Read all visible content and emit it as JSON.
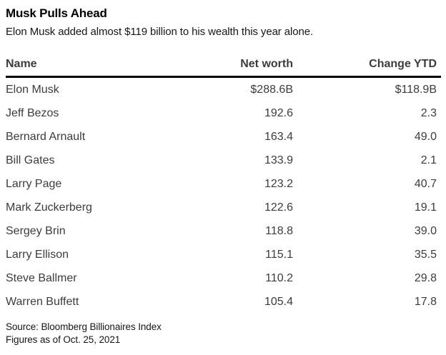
{
  "title": "Musk Pulls Ahead",
  "subtitle": "Elon Musk added almost $119 billion to his wealth this year alone.",
  "colors": {
    "title_text": "#000000",
    "table_text": "#3c3c3c",
    "header_rule": "#000000",
    "background": "#ffffff"
  },
  "table": {
    "columns": [
      "Name",
      "Net worth",
      "Change YTD"
    ],
    "rows": [
      {
        "name": "Elon Musk",
        "net_worth": "$288.6B",
        "change_ytd": "$118.9B"
      },
      {
        "name": "Jeff Bezos",
        "net_worth": "192.6",
        "change_ytd": "2.3"
      },
      {
        "name": "Bernard Arnault",
        "net_worth": "163.4",
        "change_ytd": "49.0"
      },
      {
        "name": "Bill Gates",
        "net_worth": "133.9",
        "change_ytd": "2.1"
      },
      {
        "name": "Larry Page",
        "net_worth": "123.2",
        "change_ytd": "40.7"
      },
      {
        "name": "Mark Zuckerberg",
        "net_worth": "122.6",
        "change_ytd": "19.1"
      },
      {
        "name": "Sergey Brin",
        "net_worth": "118.8",
        "change_ytd": "39.0"
      },
      {
        "name": "Larry Ellison",
        "net_worth": "115.1",
        "change_ytd": "35.5"
      },
      {
        "name": "Steve Ballmer",
        "net_worth": "110.2",
        "change_ytd": "29.8"
      },
      {
        "name": "Warren Buffett",
        "net_worth": "105.4",
        "change_ytd": "17.8"
      }
    ]
  },
  "footer": {
    "source_line": "Source: Bloomberg Billionaires Index",
    "asof_line": "Figures as of Oct. 25, 2021"
  },
  "chart_data": {
    "type": "table",
    "title": "Musk Pulls Ahead",
    "subtitle": "Elon Musk added almost $119 billion to his wealth this year alone.",
    "columns": [
      "Name",
      "Net worth",
      "Change YTD"
    ],
    "names": [
      "Elon Musk",
      "Jeff Bezos",
      "Bernard Arnault",
      "Bill Gates",
      "Larry Page",
      "Mark Zuckerberg",
      "Sergey Brin",
      "Larry Ellison",
      "Steve Ballmer",
      "Warren Buffett"
    ],
    "net_worth_billions": [
      288.6,
      192.6,
      163.4,
      133.9,
      123.2,
      122.6,
      118.8,
      115.1,
      110.2,
      105.4
    ],
    "change_ytd_billions": [
      118.9,
      2.3,
      49.0,
      2.1,
      40.7,
      19.1,
      39.0,
      35.5,
      29.8,
      17.8
    ],
    "units": "USD billions",
    "source": "Bloomberg Billionaires Index",
    "as_of": "Oct. 25, 2021"
  }
}
